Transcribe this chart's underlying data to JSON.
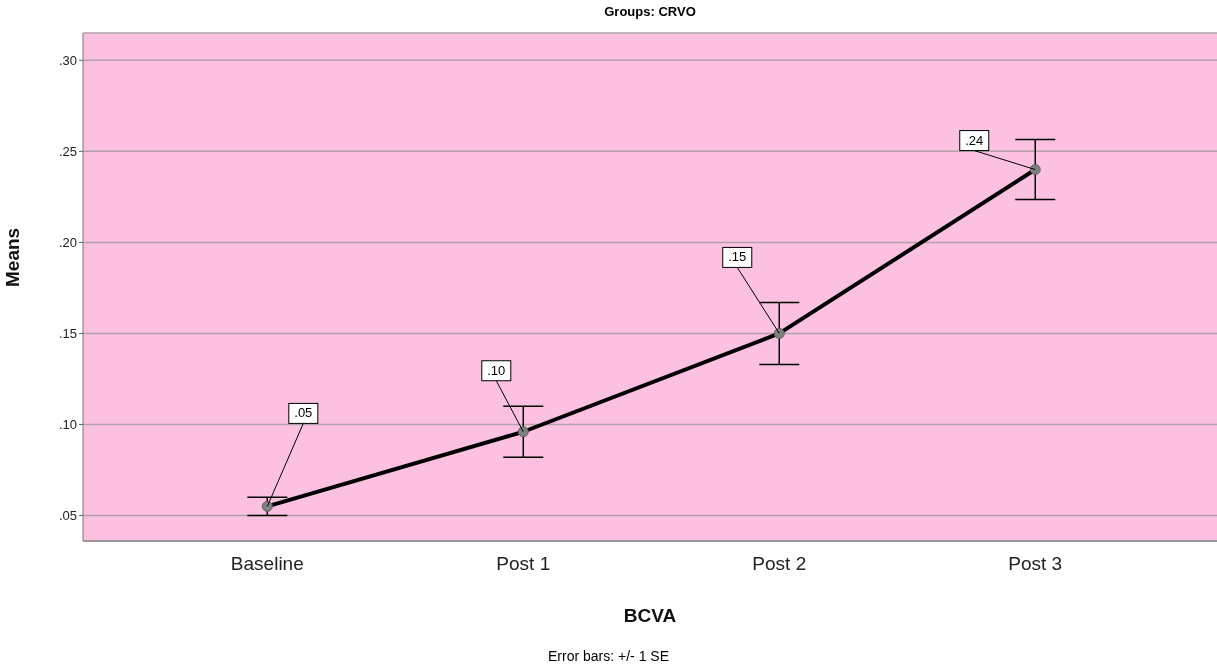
{
  "chart_data": {
    "type": "line",
    "title": "Groups: CRVO",
    "xlabel": "BCVA",
    "ylabel": "Means",
    "annotations": [
      "Error bars: +/- 1 SE"
    ],
    "categories": [
      "Baseline",
      "Post 1",
      "Post 2",
      "Post 3"
    ],
    "series": [
      {
        "color": "#000000",
        "values": [
          0.055,
          0.096,
          0.15,
          0.24
        ],
        "errors": [
          0.005,
          0.014,
          0.017,
          0.0165
        ],
        "value_labels": [
          ".05",
          ".10",
          ".15",
          ".24"
        ]
      }
    ],
    "ylim": [
      0.036,
      0.315
    ],
    "yticks": [
      {
        "value": 0.05,
        "label": ".05"
      },
      {
        "value": 0.1,
        "label": ".10"
      },
      {
        "value": 0.15,
        "label": ".15"
      },
      {
        "value": 0.2,
        "label": ".20"
      },
      {
        "value": 0.25,
        "label": ".25"
      },
      {
        "value": 0.3,
        "label": ".30"
      }
    ],
    "grid": "y",
    "legend": false,
    "marker": "circle",
    "line_style": "solid"
  }
}
